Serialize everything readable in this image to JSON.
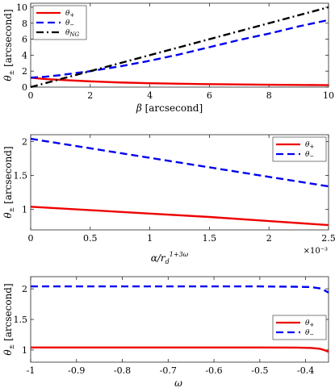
{
  "chart_data": [
    {
      "type": "line",
      "xlabel": "β [arcsecond]",
      "ylabel": "θ± [arcsecond]",
      "xlim": [
        0,
        10
      ],
      "ylim": [
        0,
        10.5
      ],
      "xticks": [
        "0",
        "2",
        "4",
        "6",
        "8",
        "10"
      ],
      "yticks": [
        "0",
        "2",
        "4",
        "6",
        "8",
        "10"
      ],
      "legend_position": "top-left",
      "series": [
        {
          "name": "θ+",
          "color": "#ee0000",
          "style": "solid",
          "x": [
            0,
            0.5,
            1,
            2,
            3,
            4,
            5,
            6,
            7,
            8,
            9,
            10
          ],
          "y": [
            1.18,
            1.0,
            0.9,
            0.72,
            0.58,
            0.49,
            0.42,
            0.37,
            0.33,
            0.3,
            0.27,
            0.25
          ]
        },
        {
          "name": "θ−",
          "color": "#0000ee",
          "style": "dashed",
          "x": [
            0,
            0.5,
            1,
            2,
            3,
            4,
            5,
            6,
            7,
            8,
            9,
            10
          ],
          "y": [
            1.18,
            1.3,
            1.5,
            2.0,
            2.6,
            3.3,
            4.1,
            5.0,
            5.9,
            6.7,
            7.6,
            8.4
          ]
        },
        {
          "name": "θNG",
          "color": "#000000",
          "style": "dashdot",
          "x": [
            0,
            10
          ],
          "y": [
            0.0,
            10.0
          ]
        }
      ]
    },
    {
      "type": "line",
      "xlabel": "α/r_d^{1+3ω}",
      "ylabel": "θ± [arcsecond]",
      "xlim": [
        0,
        0.0025
      ],
      "ylim": [
        0.7,
        2.1
      ],
      "xticks": [
        "0",
        "0.5",
        "1",
        "1.5",
        "2",
        "2.5"
      ],
      "x_multiplier": "×10⁻³",
      "yticks": [
        "1",
        "1.5",
        "2"
      ],
      "legend_position": "top-right",
      "series": [
        {
          "name": "θ+",
          "color": "#ee0000",
          "style": "solid",
          "x": [
            0,
            0.0005,
            0.001,
            0.0015,
            0.002,
            0.0025
          ],
          "y": [
            1.04,
            0.99,
            0.94,
            0.89,
            0.83,
            0.77
          ]
        },
        {
          "name": "θ−",
          "color": "#0000ee",
          "style": "dashed",
          "x": [
            0,
            0.0005,
            0.001,
            0.0015,
            0.002,
            0.0025
          ],
          "y": [
            2.04,
            1.9,
            1.76,
            1.62,
            1.48,
            1.34
          ]
        }
      ]
    },
    {
      "type": "line",
      "xlabel": "ω",
      "ylabel": "θ± [arcsecond]",
      "xlim": [
        -1,
        -0.35
      ],
      "ylim": [
        0.8,
        2.2
      ],
      "xticks": [
        "-1",
        "-0.9",
        "-0.8",
        "-0.7",
        "-0.6",
        "-0.5",
        "-0.4"
      ],
      "yticks": [
        "1",
        "1.5",
        "2"
      ],
      "legend_position": "right",
      "series": [
        {
          "name": "θ+",
          "color": "#ee0000",
          "style": "solid",
          "x": [
            -1,
            -0.9,
            -0.8,
            -0.7,
            -0.6,
            -0.5,
            -0.42,
            -0.39,
            -0.37,
            -0.36,
            -0.35
          ],
          "y": [
            1.04,
            1.04,
            1.04,
            1.04,
            1.04,
            1.04,
            1.038,
            1.033,
            1.02,
            1.0,
            0.97
          ]
        },
        {
          "name": "θ−",
          "color": "#0000ee",
          "style": "dashed",
          "x": [
            -1,
            -0.9,
            -0.8,
            -0.7,
            -0.6,
            -0.5,
            -0.42,
            -0.39,
            -0.37,
            -0.36,
            -0.35
          ],
          "y": [
            2.04,
            2.04,
            2.04,
            2.04,
            2.04,
            2.04,
            2.035,
            2.03,
            2.01,
            1.98,
            1.94
          ]
        }
      ]
    }
  ]
}
